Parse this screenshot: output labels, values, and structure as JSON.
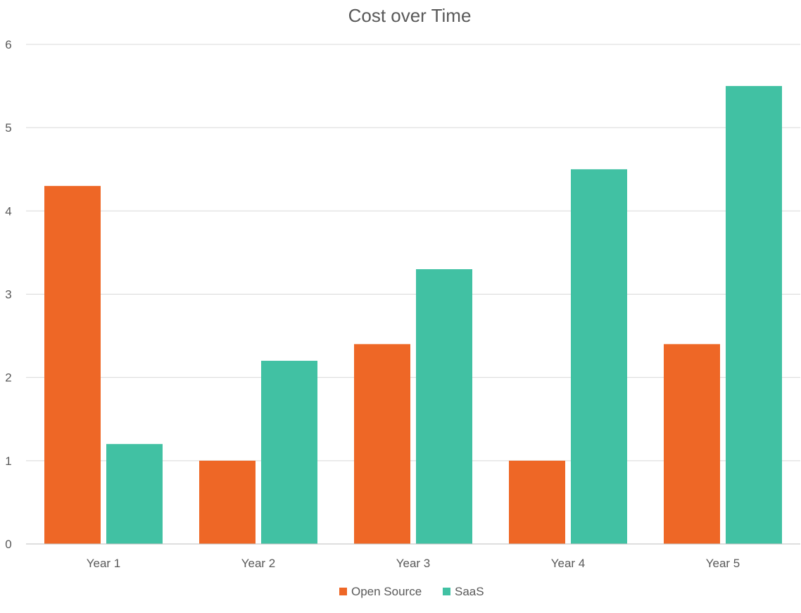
{
  "chart_data": {
    "type": "bar",
    "title": "Cost over Time",
    "xlabel": "",
    "ylabel": "",
    "categories": [
      "Year 1",
      "Year 2",
      "Year 3",
      "Year 4",
      "Year 5"
    ],
    "series": [
      {
        "name": "Open Source",
        "color": "#ee6726",
        "values": [
          4.3,
          1.0,
          2.4,
          1.0,
          2.4
        ]
      },
      {
        "name": "SaaS",
        "color": "#41c1a3",
        "values": [
          1.2,
          2.2,
          3.3,
          4.5,
          5.5
        ]
      }
    ],
    "ylim": [
      0,
      6
    ],
    "yticks": [
      "0",
      "1",
      "2",
      "3",
      "4",
      "5",
      "6"
    ],
    "grid": true,
    "legend_position": "bottom"
  }
}
